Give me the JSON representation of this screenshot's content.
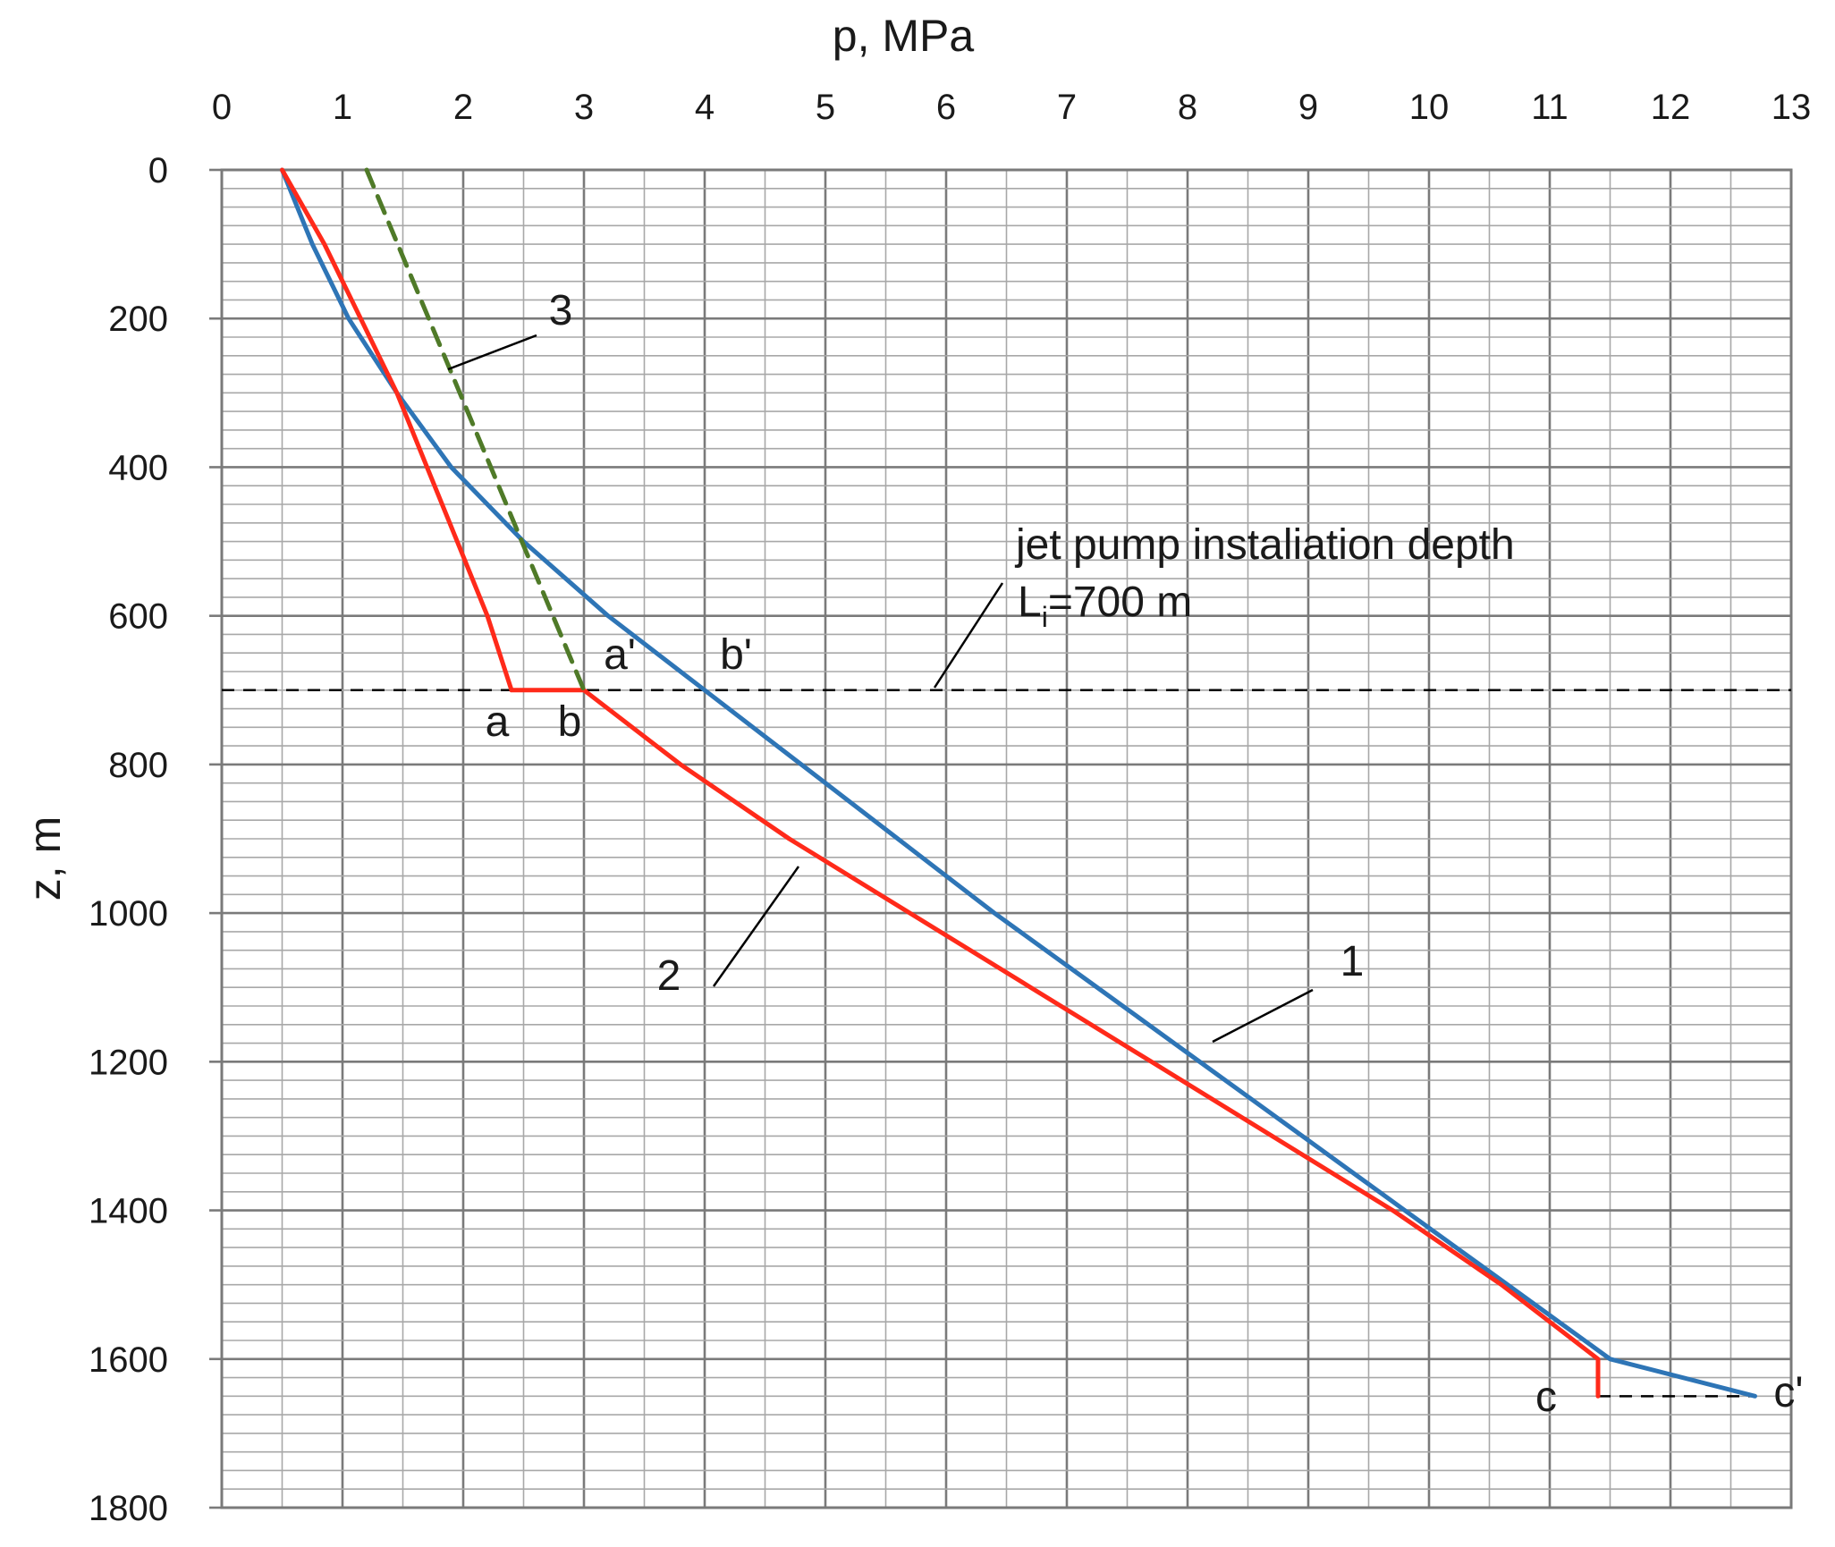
{
  "chart_data": {
    "type": "line",
    "xlabel": "p, MPa",
    "ylabel": "z, m",
    "xlim": [
      0,
      13
    ],
    "ylim": [
      0,
      1800
    ],
    "y_inverted": true,
    "x_ticks": [
      "0",
      "1",
      "2",
      "3",
      "4",
      "5",
      "6",
      "7",
      "8",
      "9",
      "10",
      "11",
      "12",
      "13"
    ],
    "y_ticks": [
      "0",
      "200",
      "400",
      "600",
      "800",
      "1000",
      "1200",
      "1400",
      "1600",
      "1800"
    ],
    "colors": {
      "curve1": "#2e75b6",
      "curve2": "#ff2a1a",
      "curve3": "#4f7a28",
      "annotation": "#000000"
    },
    "series": [
      {
        "name": "1",
        "points": [
          [
            0.5,
            0
          ],
          [
            0.75,
            100
          ],
          [
            1.05,
            200
          ],
          [
            1.45,
            300
          ],
          [
            1.9,
            400
          ],
          [
            2.5,
            500
          ],
          [
            3.2,
            600
          ],
          [
            4.0,
            700
          ],
          [
            4.8,
            800
          ],
          [
            5.6,
            900
          ],
          [
            6.4,
            1000
          ],
          [
            7.25,
            1100
          ],
          [
            8.1,
            1200
          ],
          [
            8.95,
            1300
          ],
          [
            9.8,
            1400
          ],
          [
            10.65,
            1500
          ],
          [
            11.5,
            1600
          ],
          [
            12.7,
            1650
          ]
        ]
      },
      {
        "name": "2",
        "points": [
          [
            0.5,
            0
          ],
          [
            0.85,
            100
          ],
          [
            1.15,
            200
          ],
          [
            1.45,
            300
          ],
          [
            1.7,
            400
          ],
          [
            1.95,
            500
          ],
          [
            2.2,
            600
          ],
          [
            2.4,
            700
          ],
          [
            3.0,
            700
          ],
          [
            3.8,
            800
          ],
          [
            4.7,
            900
          ],
          [
            5.7,
            1000
          ],
          [
            6.7,
            1100
          ],
          [
            7.7,
            1200
          ],
          [
            8.7,
            1300
          ],
          [
            9.7,
            1400
          ],
          [
            10.6,
            1500
          ],
          [
            11.4,
            1600
          ],
          [
            11.4,
            1650
          ]
        ]
      },
      {
        "name": "3",
        "points": [
          [
            1.2,
            0
          ],
          [
            3.0,
            700
          ]
        ]
      }
    ],
    "reference_lines": [
      {
        "name": "jet-pump-depth",
        "y": 700,
        "x_range": [
          0,
          13
        ]
      },
      {
        "name": "c-to-cprime",
        "y": 1650,
        "x_range": [
          11.4,
          12.7
        ]
      }
    ],
    "annotations": {
      "depth_title": "jet pump instaliation depth",
      "depth_value_main": "L",
      "depth_value_sub": "i",
      "depth_value_rest": "=700 m",
      "curve_labels": [
        "1",
        "2",
        "3"
      ],
      "point_labels": {
        "a": "a",
        "b": "b",
        "a_prime": "a'",
        "b_prime": "b'",
        "c": "c",
        "c_prime": "c'"
      }
    }
  }
}
